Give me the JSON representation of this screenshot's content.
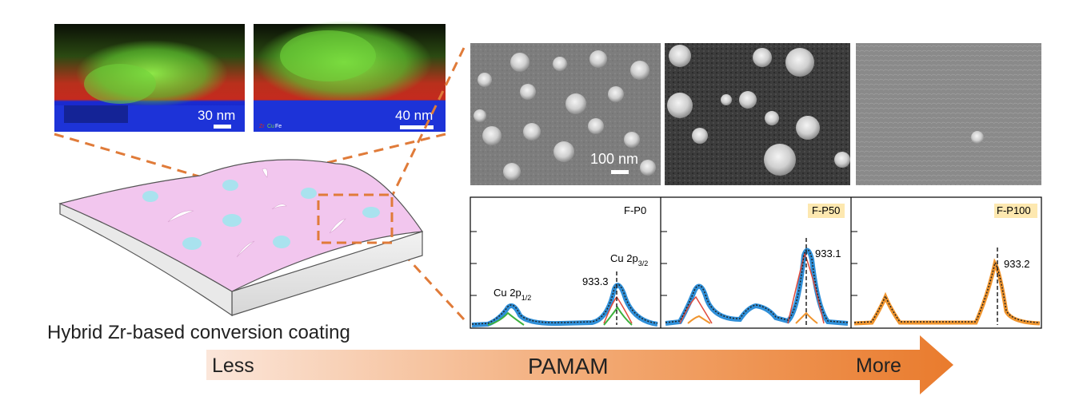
{
  "tem_images": {
    "left_scalebar": "30 nm",
    "right_scalebar": "40 nm",
    "right_legend": [
      "Zr",
      "Cu",
      "Fe"
    ]
  },
  "sem_images": {
    "scalebar": "100 nm"
  },
  "coating": {
    "caption": "Hybrid Zr-based conversion coating"
  },
  "xps": {
    "panels": [
      {
        "tag": "F-P0",
        "peak_value": "933.3",
        "highlighted": false
      },
      {
        "tag": "F-P50",
        "peak_value": "933.1",
        "highlighted": true
      },
      {
        "tag": "F-P100",
        "peak_value": "933.2",
        "highlighted": true
      }
    ],
    "label_p12_base": "Cu 2p",
    "label_p12_sub": "1/2",
    "label_p32_base": "Cu 2p",
    "label_p32_sub": "3/2"
  },
  "arrow": {
    "left_label": "Less",
    "center_label": "PAMAM",
    "right_label": "More"
  },
  "colors": {
    "accent_orange": "#e07b39",
    "coating_pink": "#f2c6ee",
    "dots_cyan": "#a9e2ee",
    "tem_red": "#d42a1f",
    "tem_green": "#6fd43a",
    "tem_blue": "#1d33d8",
    "xps_blue": "#2f8fd8",
    "xps_orange": "#f0952e",
    "xps_green": "#3cb13c",
    "xps_red": "#e04a3c",
    "tag_bg": "#fde8b0"
  }
}
